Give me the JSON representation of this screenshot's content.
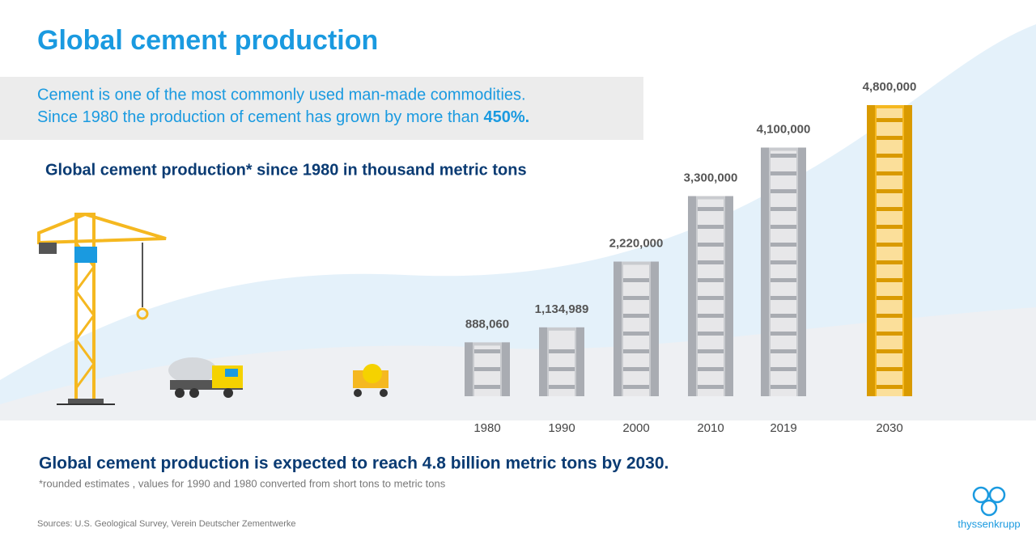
{
  "header": {
    "title": "Global cement production"
  },
  "intro": {
    "line1": "Cement is one of the most commonly used man-made commodities.",
    "line2": "Since 1980 the production of cement has grown by more than",
    "highlight": "450%."
  },
  "chart_data": {
    "type": "bar",
    "title": "Global cement production* since 1980 in thousand metric tons",
    "categories": [
      "1980",
      "1990",
      "2000",
      "2010",
      "2019",
      "2030"
    ],
    "values": [
      888060,
      1134989,
      2220000,
      3300000,
      4100000,
      4800000
    ],
    "value_labels": [
      "888,060",
      "1,134,989",
      "2,220,000",
      "3,300,000",
      "4,100,000",
      "4,800,000"
    ],
    "colors": [
      "#c9cbcf",
      "#c9cbcf",
      "#c9cbcf",
      "#c9cbcf",
      "#c9cbcf",
      "#f5b820"
    ]
  },
  "footer": {
    "headline": "Global cement production is expected to reach 4.8 billion metric tons by 2030.",
    "note": "*rounded estimates , values for 1990 and 1980 converted from short tons to metric tons",
    "sources": "Sources:  U.S. Geological Survey, Verein Deutscher Zementwerke",
    "brand": "thyssenkrupp"
  }
}
